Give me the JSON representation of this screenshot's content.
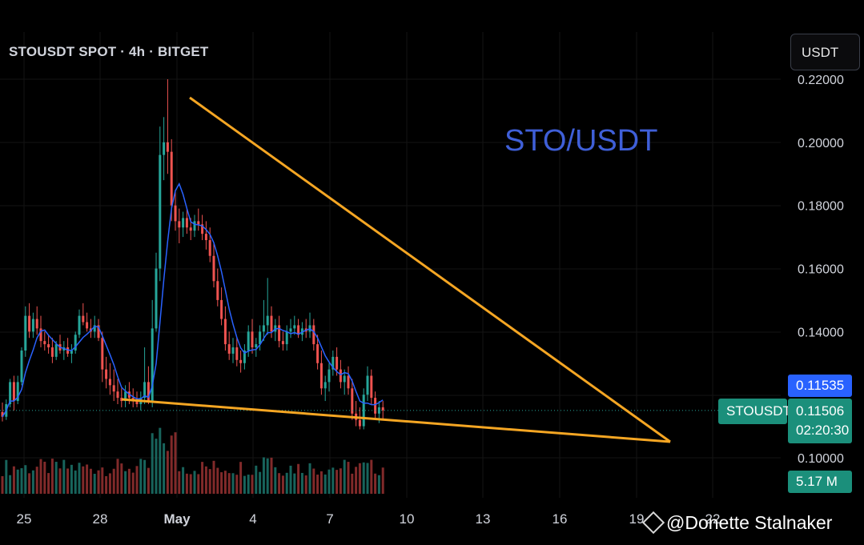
{
  "header": {
    "symbol_title": "STOUSDT SPOT · 4h · BITGET",
    "currency": "USDT"
  },
  "overlay_text": "STO/USDT",
  "price_tags": {
    "current_label": "STOUSDT",
    "line_price": "0.11535",
    "last_price": "0.11506",
    "countdown": "02:20:30",
    "volume": "5.17 M"
  },
  "watermark": "@Donette Stalnaker",
  "colors": {
    "up": "#26a69a",
    "down": "#ef5350",
    "ma": "#2962ff",
    "trendline": "#f5a623",
    "overlay": "#3f5fd8"
  },
  "chart_data": {
    "type": "candlestick",
    "ylim": [
      0.09,
      0.225
    ],
    "y_ticks": [
      "0.10000",
      "0.14000",
      "0.16000",
      "0.18000",
      "0.20000",
      "0.22000"
    ],
    "x_ticks": [
      "25",
      "28",
      "May",
      "4",
      "7",
      "10",
      "13",
      "16",
      "19",
      "22"
    ],
    "ohlc": [
      [
        0.1145,
        0.1175,
        0.1115,
        0.113
      ],
      [
        0.113,
        0.1185,
        0.112,
        0.117
      ],
      [
        0.117,
        0.125,
        0.116,
        0.124
      ],
      [
        0.124,
        0.126,
        0.115,
        0.118
      ],
      [
        0.118,
        0.126,
        0.117,
        0.124
      ],
      [
        0.124,
        0.135,
        0.123,
        0.134
      ],
      [
        0.134,
        0.148,
        0.132,
        0.145
      ],
      [
        0.145,
        0.149,
        0.138,
        0.14
      ],
      [
        0.14,
        0.146,
        0.138,
        0.144
      ],
      [
        0.144,
        0.148,
        0.139,
        0.141
      ],
      [
        0.141,
        0.145,
        0.135,
        0.137
      ],
      [
        0.137,
        0.14,
        0.134,
        0.136
      ],
      [
        0.136,
        0.139,
        0.133,
        0.135
      ],
      [
        0.135,
        0.138,
        0.13,
        0.132
      ],
      [
        0.132,
        0.137,
        0.131,
        0.136
      ],
      [
        0.136,
        0.139,
        0.133,
        0.134
      ],
      [
        0.134,
        0.137,
        0.131,
        0.135
      ],
      [
        0.135,
        0.138,
        0.132,
        0.133
      ],
      [
        0.133,
        0.136,
        0.13,
        0.134
      ],
      [
        0.134,
        0.14,
        0.133,
        0.139
      ],
      [
        0.139,
        0.147,
        0.138,
        0.145
      ],
      [
        0.145,
        0.149,
        0.142,
        0.143
      ],
      [
        0.143,
        0.146,
        0.14,
        0.141
      ],
      [
        0.141,
        0.144,
        0.138,
        0.14
      ],
      [
        0.14,
        0.145,
        0.138,
        0.142
      ],
      [
        0.142,
        0.144,
        0.137,
        0.138
      ],
      [
        0.138,
        0.14,
        0.124,
        0.128
      ],
      [
        0.128,
        0.132,
        0.122,
        0.125
      ],
      [
        0.125,
        0.13,
        0.12,
        0.123
      ],
      [
        0.123,
        0.128,
        0.118,
        0.121
      ],
      [
        0.121,
        0.125,
        0.117,
        0.119
      ],
      [
        0.119,
        0.122,
        0.116,
        0.118
      ],
      [
        0.118,
        0.123,
        0.116,
        0.121
      ],
      [
        0.121,
        0.124,
        0.117,
        0.119
      ],
      [
        0.119,
        0.122,
        0.116,
        0.118
      ],
      [
        0.118,
        0.121,
        0.116,
        0.117
      ],
      [
        0.117,
        0.121,
        0.115,
        0.119
      ],
      [
        0.119,
        0.135,
        0.117,
        0.124
      ],
      [
        0.124,
        0.129,
        0.117,
        0.118
      ],
      [
        0.118,
        0.15,
        0.116,
        0.141
      ],
      [
        0.141,
        0.165,
        0.14,
        0.16
      ],
      [
        0.16,
        0.205,
        0.156,
        0.196
      ],
      [
        0.196,
        0.208,
        0.188,
        0.2
      ],
      [
        0.2,
        0.22,
        0.19,
        0.197
      ],
      [
        0.197,
        0.201,
        0.175,
        0.18
      ],
      [
        0.18,
        0.185,
        0.172,
        0.175
      ],
      [
        0.175,
        0.179,
        0.168,
        0.173
      ],
      [
        0.173,
        0.178,
        0.17,
        0.176
      ],
      [
        0.176,
        0.179,
        0.171,
        0.173
      ],
      [
        0.173,
        0.176,
        0.169,
        0.172
      ],
      [
        0.172,
        0.177,
        0.17,
        0.175
      ],
      [
        0.175,
        0.179,
        0.172,
        0.174
      ],
      [
        0.174,
        0.177,
        0.169,
        0.171
      ],
      [
        0.171,
        0.175,
        0.166,
        0.169
      ],
      [
        0.169,
        0.173,
        0.162,
        0.164
      ],
      [
        0.164,
        0.168,
        0.154,
        0.156
      ],
      [
        0.156,
        0.16,
        0.148,
        0.15
      ],
      [
        0.15,
        0.154,
        0.142,
        0.144
      ],
      [
        0.144,
        0.148,
        0.134,
        0.136
      ],
      [
        0.136,
        0.14,
        0.131,
        0.133
      ],
      [
        0.133,
        0.138,
        0.13,
        0.135
      ],
      [
        0.135,
        0.138,
        0.129,
        0.131
      ],
      [
        0.131,
        0.134,
        0.127,
        0.13
      ],
      [
        0.13,
        0.136,
        0.128,
        0.134
      ],
      [
        0.134,
        0.142,
        0.132,
        0.14
      ],
      [
        0.14,
        0.144,
        0.133,
        0.135
      ],
      [
        0.135,
        0.138,
        0.132,
        0.136
      ],
      [
        0.136,
        0.142,
        0.134,
        0.14
      ],
      [
        0.14,
        0.15,
        0.137,
        0.142
      ],
      [
        0.142,
        0.157,
        0.139,
        0.145
      ],
      [
        0.145,
        0.148,
        0.138,
        0.14
      ],
      [
        0.14,
        0.144,
        0.137,
        0.142
      ],
      [
        0.142,
        0.145,
        0.135,
        0.137
      ],
      [
        0.137,
        0.14,
        0.134,
        0.136
      ],
      [
        0.136,
        0.142,
        0.134,
        0.14
      ],
      [
        0.14,
        0.144,
        0.138,
        0.141
      ],
      [
        0.141,
        0.145,
        0.139,
        0.142
      ],
      [
        0.142,
        0.144,
        0.138,
        0.139
      ],
      [
        0.139,
        0.143,
        0.137,
        0.141
      ],
      [
        0.141,
        0.144,
        0.138,
        0.14
      ],
      [
        0.14,
        0.146,
        0.138,
        0.142
      ],
      [
        0.142,
        0.144,
        0.134,
        0.136
      ],
      [
        0.136,
        0.139,
        0.128,
        0.13
      ],
      [
        0.13,
        0.134,
        0.12,
        0.122
      ],
      [
        0.122,
        0.126,
        0.118,
        0.124
      ],
      [
        0.124,
        0.13,
        0.121,
        0.128
      ],
      [
        0.128,
        0.134,
        0.126,
        0.132
      ],
      [
        0.132,
        0.135,
        0.126,
        0.128
      ],
      [
        0.128,
        0.131,
        0.122,
        0.124
      ],
      [
        0.124,
        0.128,
        0.12,
        0.126
      ],
      [
        0.126,
        0.129,
        0.12,
        0.122
      ],
      [
        0.122,
        0.125,
        0.112,
        0.114
      ],
      [
        0.114,
        0.118,
        0.11,
        0.112
      ],
      [
        0.112,
        0.116,
        0.109,
        0.11
      ],
      [
        0.11,
        0.122,
        0.109,
        0.12
      ],
      [
        0.12,
        0.129,
        0.118,
        0.126
      ],
      [
        0.126,
        0.128,
        0.117,
        0.119
      ],
      [
        0.119,
        0.121,
        0.112,
        0.114
      ],
      [
        0.114,
        0.118,
        0.111,
        0.116
      ],
      [
        0.116,
        0.118,
        0.112,
        0.115
      ]
    ],
    "volume_label": "5.17 M"
  }
}
